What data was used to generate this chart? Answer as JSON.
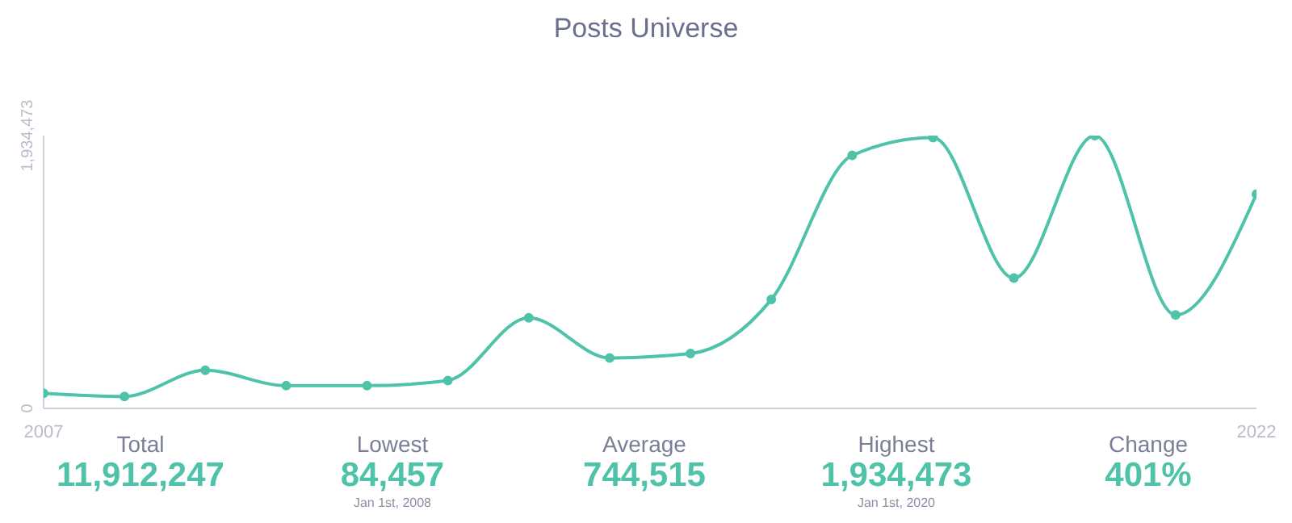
{
  "chart_data": {
    "type": "line",
    "title": "Posts Universe",
    "x": [
      2007,
      2008,
      2009,
      2010,
      2011,
      2012,
      2013,
      2014,
      2015,
      2016,
      2017,
      2018,
      2019,
      2020,
      2021,
      2022
    ],
    "series": [
      {
        "color": "#4fc3a9",
        "values": [
          107000,
          84457,
          270000,
          161000,
          161000,
          198000,
          643000,
          358000,
          389000,
          772000,
          1794000,
          1920000,
          924000,
          1934473,
          662000,
          1520000
        ]
      }
    ],
    "xlim": [
      2007,
      2022
    ],
    "xticks": [
      2007,
      2022
    ],
    "ylim": [
      0,
      1934473
    ],
    "yticks": [
      0,
      {
        "value": 1934473,
        "label": "1,934,473"
      }
    ],
    "grid": false,
    "legend": false,
    "marker": "circle",
    "line_style": "solid",
    "annotations": [
      "Total\n11,912,247",
      "Lowest\n84,457\nJan 1st, 2008",
      "Average\n744,515",
      "Highest\n1,934,473\nJan 1st, 2020",
      "Change\n401%"
    ]
  }
}
